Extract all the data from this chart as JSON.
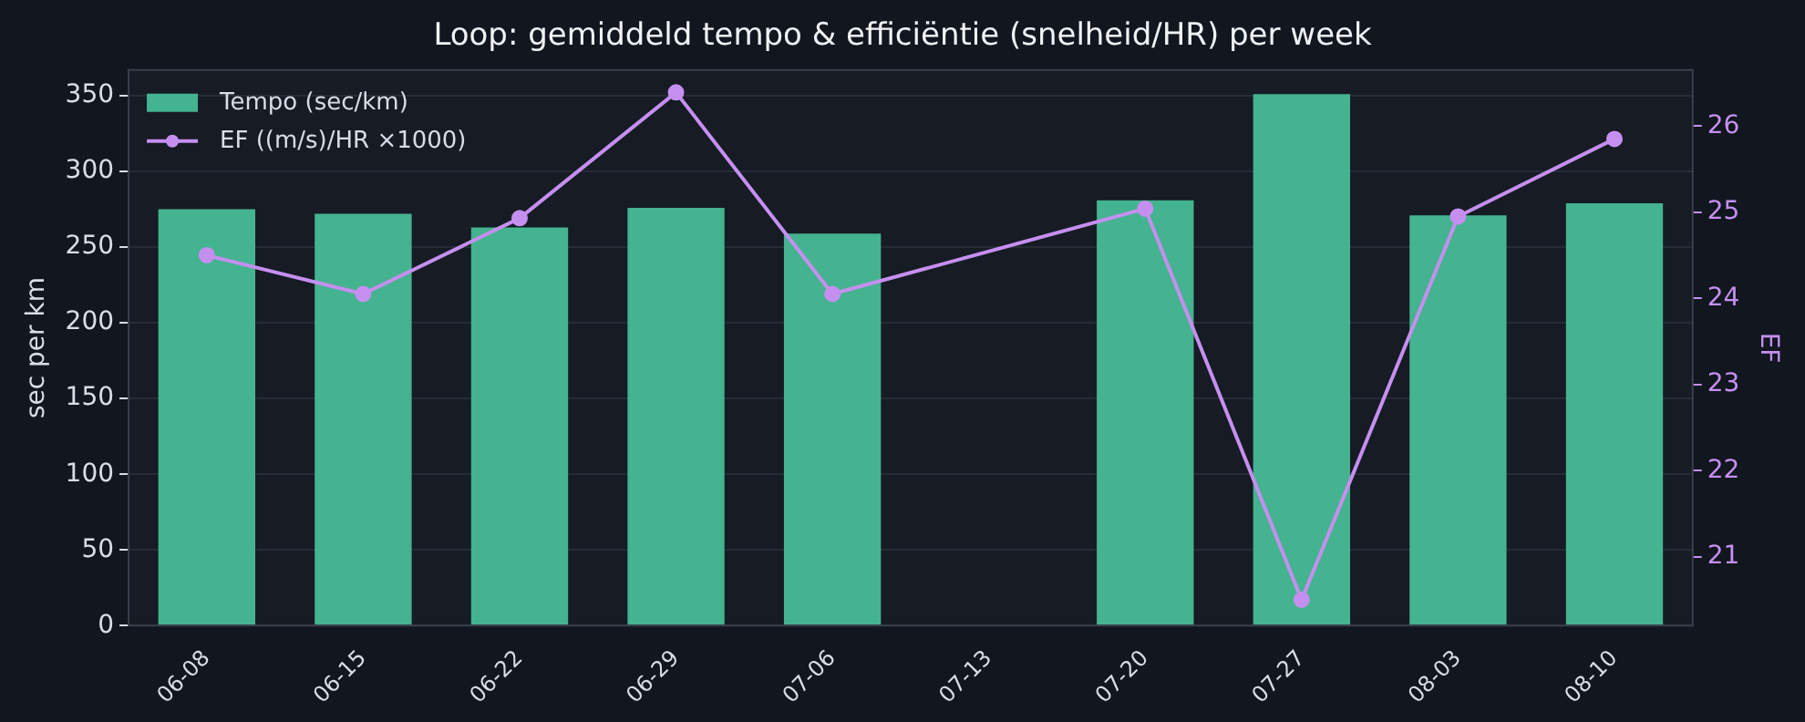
{
  "chart_data": {
    "type": "bar",
    "title": "Loop: gemiddeld tempo & efficiëntie (snelheid/HR) per week",
    "ylabel": "sec per km",
    "y2label": "EF",
    "categories": [
      "06-08",
      "06-15",
      "06-22",
      "06-29",
      "07-06",
      "07-13",
      "07-20",
      "07-27",
      "08-03",
      "08-10"
    ],
    "series": [
      {
        "name": "Tempo (sec/km)",
        "color": "#44b38f",
        "values": [
          275,
          272,
          263,
          276,
          259,
          null,
          281,
          351,
          271,
          279
        ]
      },
      {
        "name": "EF ((m/s)/HR ×1000)",
        "type": "line",
        "axis": "y2",
        "color": "#c58ff0",
        "values": [
          24.5,
          24.05,
          24.93,
          26.39,
          24.05,
          null,
          25.04,
          20.5,
          24.95,
          25.85
        ]
      }
    ],
    "ylim": [
      0,
      367
    ],
    "yticks": [
      0,
      50,
      100,
      150,
      200,
      250,
      300,
      350
    ],
    "y2lim": [
      20.2,
      26.65
    ],
    "y2ticks": [
      21,
      22,
      23,
      24,
      25,
      26
    ],
    "grid": "y",
    "legend": "top left",
    "marker": "circle",
    "line_style": "solid"
  }
}
